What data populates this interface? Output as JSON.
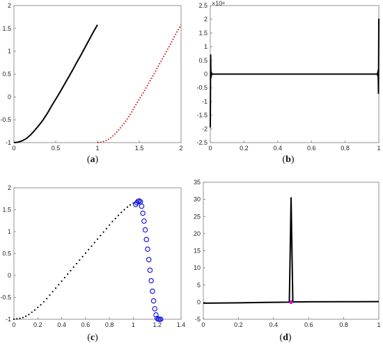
{
  "chart_data": [
    {
      "panel_label": "(a)",
      "type": "line",
      "xlim": [
        0,
        2
      ],
      "ylim": [
        -1,
        2
      ],
      "x_ticks": [
        "0",
        "0.5",
        "1",
        "1.5",
        "2"
      ],
      "y_ticks": [
        "-1",
        "-0.5",
        "0",
        "0.5",
        "1",
        "1.5",
        "2"
      ],
      "grid": false,
      "series": [
        {
          "style": "solid",
          "color": "#000000",
          "x": [
            0,
            0.05,
            0.1,
            0.15,
            0.2,
            0.25,
            0.3,
            0.35,
            0.4,
            0.45,
            0.5,
            0.55,
            0.6,
            0.65,
            0.7,
            0.75,
            0.8,
            0.85,
            0.9,
            0.95,
            1.0
          ],
          "y": [
            -1.0,
            -0.99,
            -0.96,
            -0.91,
            -0.83,
            -0.73,
            -0.62,
            -0.5,
            -0.36,
            -0.2,
            -0.05,
            0.1,
            0.26,
            0.42,
            0.58,
            0.75,
            0.91,
            1.08,
            1.25,
            1.42,
            1.58
          ]
        },
        {
          "style": "dotted",
          "color": "#cc1111",
          "x": [
            1.0,
            1.05,
            1.1,
            1.15,
            1.2,
            1.25,
            1.3,
            1.35,
            1.4,
            1.45,
            1.5,
            1.55,
            1.6,
            1.65,
            1.7,
            1.75,
            1.8,
            1.85,
            1.9,
            1.95,
            2.0
          ],
          "y": [
            -1.0,
            -0.99,
            -0.96,
            -0.91,
            -0.83,
            -0.73,
            -0.62,
            -0.5,
            -0.36,
            -0.2,
            -0.05,
            0.1,
            0.26,
            0.42,
            0.58,
            0.75,
            0.91,
            1.08,
            1.25,
            1.42,
            1.58
          ]
        }
      ]
    },
    {
      "panel_label": "(b)",
      "type": "line",
      "xlim": [
        0,
        1
      ],
      "ylim": [
        -2.5,
        2.5
      ],
      "y_scale_label": "×10⁸",
      "x_ticks": [
        "0",
        "0.2",
        "0.4",
        "0.6",
        "0.8",
        "1"
      ],
      "y_ticks": [
        "-2.5",
        "-2",
        "-1.5",
        "-1",
        "-0.5",
        "0",
        "0.5",
        "1",
        "1.5",
        "2",
        "2.5"
      ],
      "grid": false,
      "series": [
        {
          "style": "solid",
          "color": "#000000",
          "x": [
            0.0,
            0.002,
            0.004,
            0.006,
            0.008,
            0.012,
            0.05,
            0.5,
            0.95,
            0.988,
            0.992,
            0.994,
            0.996,
            0.998,
            1.0
          ],
          "y": [
            -1.95,
            0.72,
            -0.15,
            0.08,
            -0.03,
            0.0,
            0.0,
            0.0,
            0.0,
            0.0,
            0.03,
            -0.08,
            0.15,
            -0.72,
            2.02
          ]
        }
      ]
    },
    {
      "panel_label": "(c)",
      "type": "scatter",
      "xlim": [
        0,
        1.4
      ],
      "ylim": [
        -1,
        2
      ],
      "x_ticks": [
        "0",
        "0.2",
        "0.4",
        "0.6",
        "0.8",
        "1",
        "1.2",
        "1.4"
      ],
      "y_ticks": [
        "-1",
        "-0.5",
        "0",
        "0.5",
        "1",
        "1.5",
        "2"
      ],
      "grid": false,
      "series": [
        {
          "style": "dots",
          "color": "#000000",
          "x": [
            0.0,
            0.025,
            0.05,
            0.075,
            0.1,
            0.125,
            0.15,
            0.175,
            0.2,
            0.225,
            0.25,
            0.275,
            0.3,
            0.325,
            0.35,
            0.375,
            0.4,
            0.425,
            0.45,
            0.475,
            0.5,
            0.525,
            0.55,
            0.575,
            0.6,
            0.625,
            0.65,
            0.675,
            0.7,
            0.725,
            0.75,
            0.775,
            0.8,
            0.825,
            0.85,
            0.875,
            0.9,
            0.925,
            0.95,
            0.975,
            1.0
          ],
          "y": [
            -1.0,
            -0.99,
            -0.98,
            -0.96,
            -0.93,
            -0.89,
            -0.84,
            -0.79,
            -0.73,
            -0.67,
            -0.6,
            -0.53,
            -0.45,
            -0.37,
            -0.29,
            -0.21,
            -0.13,
            -0.05,
            0.03,
            0.11,
            0.19,
            0.27,
            0.35,
            0.43,
            0.51,
            0.59,
            0.67,
            0.75,
            0.83,
            0.91,
            0.99,
            1.07,
            1.15,
            1.23,
            1.3,
            1.37,
            1.44,
            1.5,
            1.56,
            1.61,
            1.65
          ]
        },
        {
          "style": "circles",
          "color": "#1a1ae6",
          "x": [
            1.02,
            1.03,
            1.04,
            1.05,
            1.06,
            1.07,
            1.08,
            1.09,
            1.1,
            1.11,
            1.12,
            1.13,
            1.14,
            1.15,
            1.16,
            1.17,
            1.18,
            1.19,
            1.2,
            1.21,
            1.22,
            1.23
          ],
          "y": [
            1.62,
            1.66,
            1.69,
            1.7,
            1.68,
            1.58,
            1.42,
            1.24,
            1.04,
            0.82,
            0.6,
            0.36,
            0.12,
            -0.12,
            -0.36,
            -0.58,
            -0.76,
            -0.9,
            -0.98,
            -1.0,
            -1.0,
            -1.0
          ]
        }
      ]
    },
    {
      "panel_label": "(d)",
      "type": "line",
      "xlim": [
        0,
        1
      ],
      "ylim": [
        -5,
        35
      ],
      "x_ticks": [
        "0",
        "0.2",
        "0.4",
        "0.6",
        "0.8",
        "1"
      ],
      "y_ticks": [
        "-5",
        "0",
        "5",
        "10",
        "15",
        "20",
        "25",
        "30",
        "35"
      ],
      "grid": false,
      "series": [
        {
          "style": "solid",
          "color": "#000000",
          "x": [
            0.0,
            0.2,
            0.4,
            0.49,
            0.495,
            0.5,
            0.505,
            0.51,
            0.6,
            0.8,
            1.0
          ],
          "y": [
            -0.3,
            -0.2,
            -0.05,
            0.0,
            15.0,
            30.6,
            15.0,
            0.05,
            0.1,
            0.12,
            0.15
          ]
        },
        {
          "style": "marker",
          "color": "#d400d4",
          "x": [
            0.5
          ],
          "y": [
            0.0
          ]
        }
      ]
    }
  ]
}
